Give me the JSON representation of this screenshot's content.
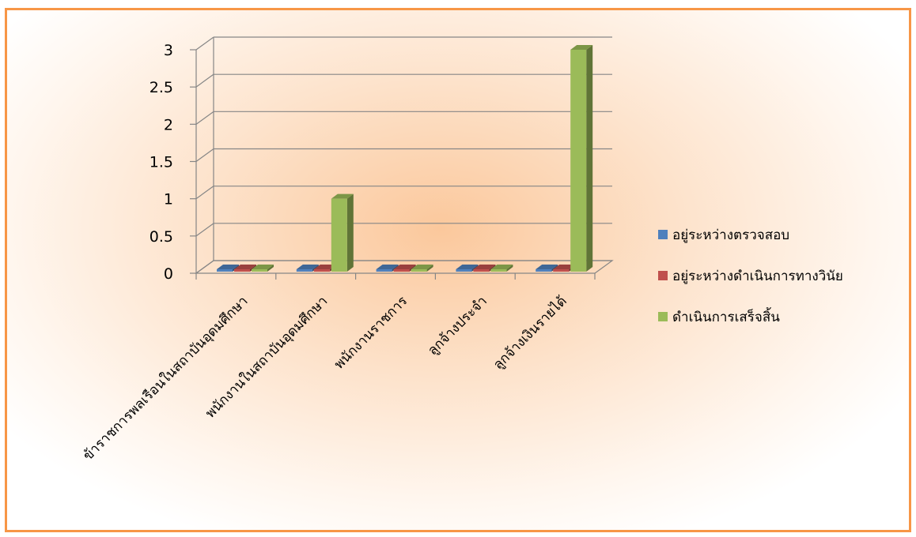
{
  "chart_data": {
    "type": "bar",
    "title": "",
    "xlabel": "",
    "ylabel": "",
    "categories": [
      "ข้าราชการพลเรือนในสถาบันอุดมศึกษา",
      "พนักงานในสถาบันอุดมศึกษา",
      "พนักงานราชการ",
      "ลูกจ้างประจำ",
      "ลูกจ้างเงินรายได้"
    ],
    "series": [
      {
        "name": "อยู่ระหว่างตรวจสอบ",
        "values": [
          0,
          0,
          0,
          0,
          0
        ],
        "color": "#4F81BD"
      },
      {
        "name": "อยู่ระหว่างดำเนินการทางวินัย",
        "values": [
          0,
          0,
          0,
          0,
          0
        ],
        "color": "#C0504D"
      },
      {
        "name": "ดำเนินการเสร็จสิ้น",
        "values": [
          0,
          1,
          0,
          0,
          3
        ],
        "color": "#9BBB59"
      }
    ],
    "ylim": [
      0,
      3
    ],
    "yticks": [
      "0",
      "0.5",
      "1",
      "1.5",
      "2",
      "2.5",
      "3"
    ],
    "grid": true,
    "legend_position": "right",
    "three_d": true
  },
  "colors": {
    "border": "#F79646",
    "gridline": "#868686"
  }
}
